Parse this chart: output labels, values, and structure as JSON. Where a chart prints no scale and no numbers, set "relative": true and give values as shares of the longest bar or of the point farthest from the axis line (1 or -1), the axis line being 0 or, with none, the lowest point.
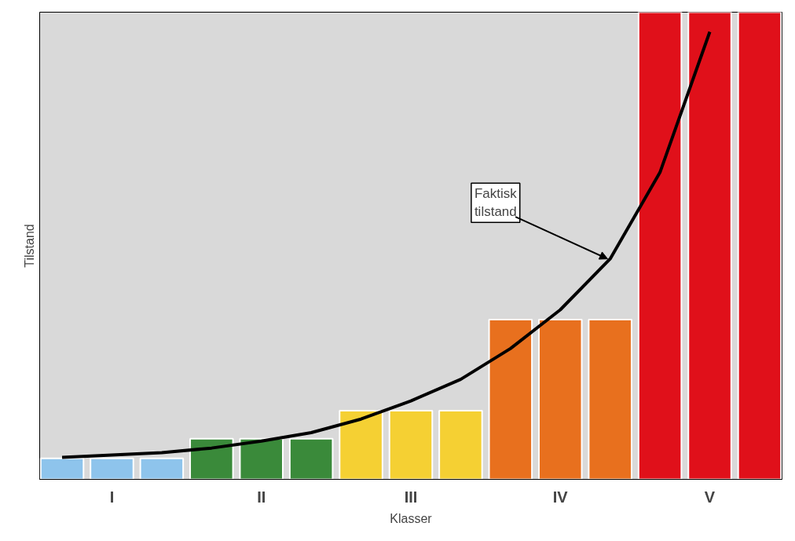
{
  "chart_data": {
    "type": "bar",
    "relative": true,
    "xlabel": "Klasser",
    "ylabel": "Tilstand",
    "categories": [
      null,
      "I",
      null,
      null,
      "II",
      null,
      null,
      "III",
      null,
      null,
      "IV",
      null,
      null,
      "V",
      null
    ],
    "series": [
      {
        "values": [
          0.045,
          0.045,
          0.045,
          0.087,
          0.087,
          0.087,
          0.147,
          0.147,
          0.147,
          0.342,
          0.342,
          0.342,
          1,
          1,
          1
        ],
        "colors": [
          "#8ec4ec",
          "#8ec4ec",
          "#8ec4ec",
          "#3a8a3a",
          "#3a8a3a",
          "#3a8a3a",
          "#f5d033",
          "#f5d033",
          "#f5d033",
          "#e8701e",
          "#e8701e",
          "#e8701e",
          "#e0101a",
          "#e0101a",
          "#e0101a"
        ]
      },
      {
        "type": "line",
        "color": "#000000",
        "values": [
          0.047,
          0.052,
          0.057,
          0.067,
          0.082,
          0.1,
          0.129,
          0.168,
          0.214,
          0.28,
          0.363,
          0.472,
          0.657,
          0.958,
          null
        ]
      }
    ],
    "annotations": [
      "Faktisk\ntilstand"
    ],
    "grid": false
  }
}
